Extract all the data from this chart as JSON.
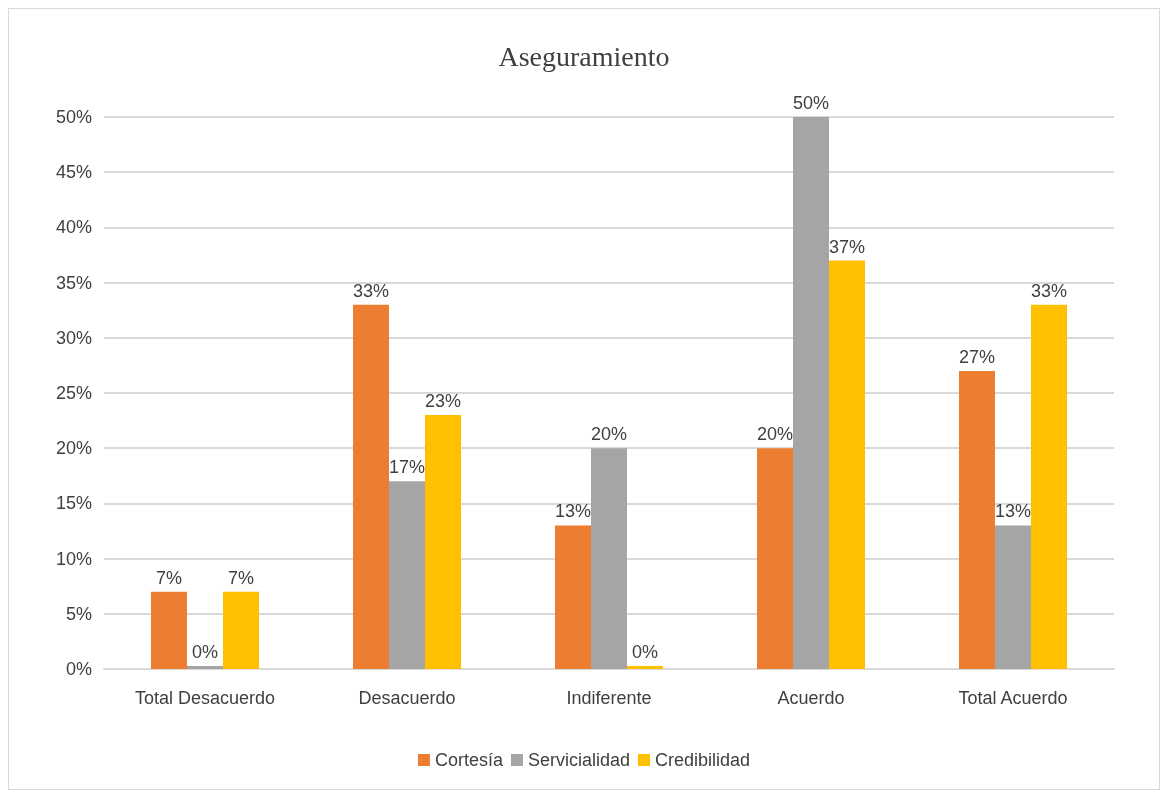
{
  "chart_data": {
    "type": "bar",
    "title": "Aseguramiento",
    "categories": [
      "Total Desacuerdo",
      "Desacuerdo",
      "Indiferente",
      "Acuerdo",
      "Total Acuerdo"
    ],
    "series": [
      {
        "name": "Cortesía",
        "color": "#ed7d31",
        "values": [
          7,
          33,
          13,
          20,
          27
        ],
        "value_labels": [
          "7%",
          "33%",
          "13%",
          "20%",
          "27%"
        ]
      },
      {
        "name": "Servicialidad",
        "color": "#a5a5a5",
        "values": [
          0,
          17,
          20,
          50,
          13
        ],
        "value_labels": [
          "0%",
          "17%",
          "20%",
          "50%",
          "13%"
        ]
      },
      {
        "name": "Credibilidad",
        "color": "#ffc000",
        "values": [
          7,
          23,
          0,
          37,
          33
        ],
        "value_labels": [
          "7%",
          "23%",
          "0%",
          "37%",
          "33%"
        ]
      }
    ],
    "ylim": [
      0,
      50
    ],
    "yticks": [
      {
        "value": 0,
        "label": "0%"
      },
      {
        "value": 5,
        "label": "5%"
      },
      {
        "value": 10,
        "label": "10%"
      },
      {
        "value": 15,
        "label": "15%"
      },
      {
        "value": 20,
        "label": "20%"
      },
      {
        "value": 25,
        "label": "25%"
      },
      {
        "value": 30,
        "label": "30%"
      },
      {
        "value": 35,
        "label": "35%"
      },
      {
        "value": 40,
        "label": "40%"
      },
      {
        "value": 45,
        "label": "45%"
      },
      {
        "value": 50,
        "label": "50%"
      }
    ],
    "grid": "y",
    "legend": "bottom"
  }
}
